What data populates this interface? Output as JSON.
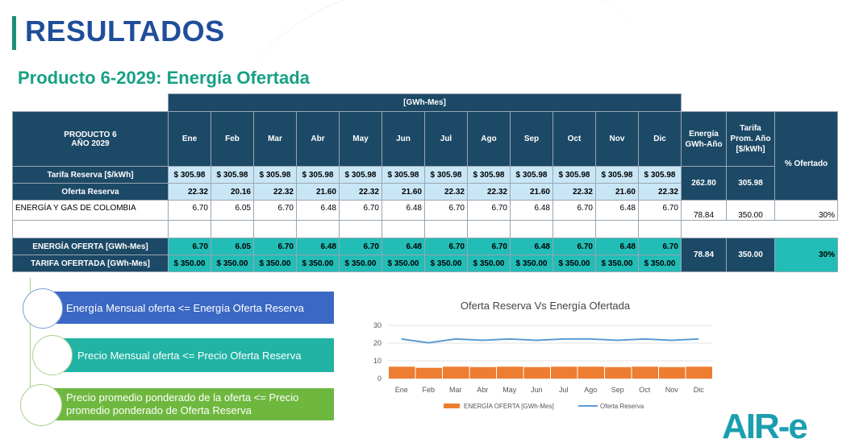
{
  "header": {
    "title": "RESULTADOS",
    "subtitle": "Producto 6-2029: Energía Ofertada"
  },
  "table": {
    "unit_header": "[GWh-Mes]",
    "product_label_line1": "PRODUCTO 6",
    "product_label_line2": "AÑO 2029",
    "months": [
      "Ene",
      "Feb",
      "Mar",
      "Abr",
      "May",
      "Jun",
      "Jul",
      "Ago",
      "Sep",
      "Oct",
      "Nov",
      "Dic"
    ],
    "col_energia": "Energía GWh-Año",
    "col_tarifa": "Tarifa Prom. Año [$/kWh]",
    "col_ofertado": "% Ofertado",
    "rows": {
      "tarifa_reserva": {
        "label": "Tarifa Reserva [$/kWh]",
        "values": [
          "$ 305.98",
          "$ 305.98",
          "$ 305.98",
          "$ 305.98",
          "$ 305.98",
          "$ 305.98",
          "$ 305.98",
          "$ 305.98",
          "$ 305.98",
          "$ 305.98",
          "$ 305.98",
          "$ 305.98"
        ]
      },
      "oferta_reserva": {
        "label": "Oferta Reserva",
        "values": [
          "22.32",
          "20.16",
          "22.32",
          "21.60",
          "22.32",
          "21.60",
          "22.32",
          "22.32",
          "21.60",
          "22.32",
          "21.60",
          "22.32"
        ]
      },
      "reserva_totals": {
        "energia": "262.80",
        "tarifa": "305.98"
      },
      "empresa": {
        "label": "ENERGÍA Y GAS DE COLOMBIA",
        "values": [
          "6.70",
          "6.05",
          "6.70",
          "6.48",
          "6.70",
          "6.48",
          "6.70",
          "6.70",
          "6.48",
          "6.70",
          "6.48",
          "6.70"
        ],
        "energia": "78.84",
        "tarifa": "350.00",
        "ofertado": "30%"
      },
      "energia_oferta": {
        "label": "ENERGÍA OFERTA [GWh-Mes]",
        "values": [
          "6.70",
          "6.05",
          "6.70",
          "6.48",
          "6.70",
          "6.48",
          "6.70",
          "6.70",
          "6.48",
          "6.70",
          "6.48",
          "6.70"
        ]
      },
      "tarifa_ofertada": {
        "label": "TARIFA OFERTADA [GWh-Mes]",
        "values": [
          "$ 350.00",
          "$ 350.00",
          "$ 350.00",
          "$ 350.00",
          "$ 350.00",
          "$ 350.00",
          "$ 350.00",
          "$ 350.00",
          "$ 350.00",
          "$ 350.00",
          "$ 350.00",
          "$ 350.00"
        ]
      },
      "oferta_totals": {
        "energia": "78.84",
        "tarifa": "350.00",
        "ofertado": "30%"
      }
    }
  },
  "callouts": [
    {
      "text": "Energía Mensual oferta <= Energía Oferta Reserva",
      "color": "#3b68c4"
    },
    {
      "text": "Precio Mensual oferta <= Precio Oferta Reserva",
      "color": "#21b3a4"
    },
    {
      "text": "Precio promedio ponderado de la oferta <= Precio promedio ponderado de Oferta Reserva",
      "color": "#6fb83f"
    }
  ],
  "chart_data": {
    "type": "bar",
    "title": "Oferta Reserva Vs Energía Ofertada",
    "categories": [
      "Ene",
      "Feb",
      "Mar",
      "Abr",
      "May",
      "Jun",
      "Jul",
      "Ago",
      "Sep",
      "Oct",
      "Nov",
      "Dic"
    ],
    "series": [
      {
        "name": "ENERGÍA OFERTA [GWh-Mes]",
        "type": "bar",
        "color": "#ed7d31",
        "values": [
          6.7,
          6.05,
          6.7,
          6.48,
          6.7,
          6.48,
          6.7,
          6.7,
          6.48,
          6.7,
          6.48,
          6.7
        ]
      },
      {
        "name": "Oferta Reserva",
        "type": "line",
        "color": "#5b9bd5",
        "values": [
          22.32,
          20.16,
          22.32,
          21.6,
          22.32,
          21.6,
          22.32,
          22.32,
          21.6,
          22.32,
          21.6,
          22.32
        ]
      }
    ],
    "yticks": [
      "0",
      "10",
      "20",
      "30"
    ],
    "ylim": [
      0,
      30
    ],
    "legend": "bottom",
    "grid": true
  },
  "logo": {
    "text": "AIR-e"
  }
}
